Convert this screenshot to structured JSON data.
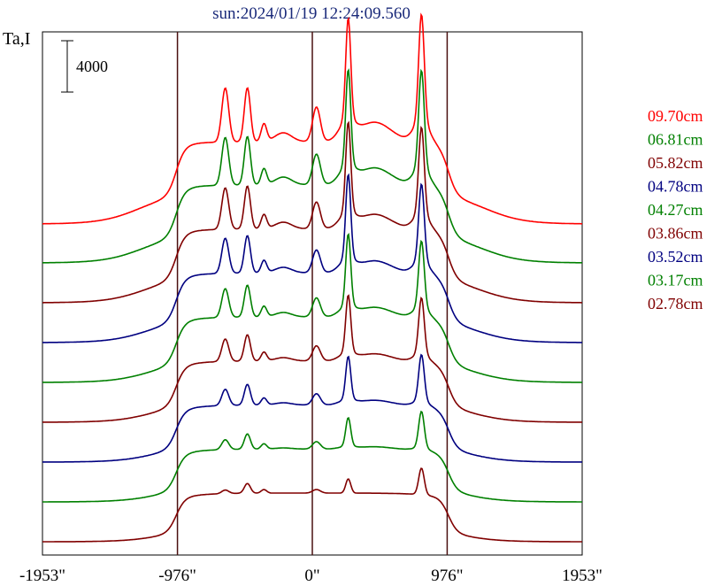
{
  "chart_data": {
    "type": "line",
    "title": "sun:2024/01/19 12:24:09.560",
    "ylabel": "Ta,I",
    "scale_bar_label": "4000",
    "scale_bar_value": 4000,
    "xlim": [
      -1953,
      1953
    ],
    "x_ticks": [
      -1953,
      -976,
      0,
      976,
      1953
    ],
    "x_tick_labels": [
      "-1953\"",
      "-976\"",
      "0\"",
      "976\"",
      "1953\""
    ],
    "vertical_lines_at": [
      -976,
      0,
      976
    ],
    "series": [
      {
        "name": "09.70cm",
        "color": "#ff0000"
      },
      {
        "name": "06.81cm",
        "color": "#008000"
      },
      {
        "name": "05.82cm",
        "color": "#800000"
      },
      {
        "name": "04.78cm",
        "color": "#000080"
      },
      {
        "name": "04.27cm",
        "color": "#008000"
      },
      {
        "name": "03.86cm",
        "color": "#800000"
      },
      {
        "name": "03.52cm",
        "color": "#000080"
      },
      {
        "name": "03.17cm",
        "color": "#008000"
      },
      {
        "name": "02.78cm",
        "color": "#800000"
      }
    ]
  }
}
